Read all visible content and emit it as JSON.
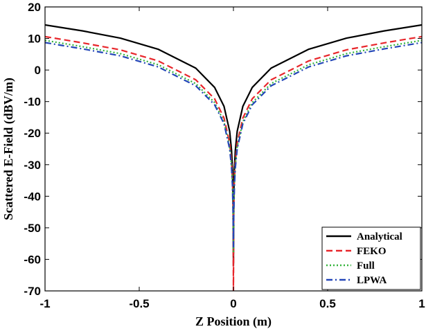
{
  "chart_data": {
    "type": "line",
    "title": "",
    "xlabel": "Z Position (m)",
    "ylabel": "Scattered E-Field (dBV/m)",
    "xlim": [
      -1,
      1
    ],
    "ylim": [
      -70,
      20
    ],
    "xticks": [
      -1,
      -0.5,
      0,
      0.5,
      1
    ],
    "xtick_labels": [
      "-1",
      "-0.5",
      "0",
      "0.5",
      "1"
    ],
    "yticks": [
      -70,
      -60,
      -50,
      -40,
      -30,
      -20,
      -10,
      0,
      10,
      20
    ],
    "ytick_labels": [
      "-70",
      "-60",
      "-50",
      "-40",
      "-30",
      "-20",
      "-10",
      "0",
      "10",
      "20"
    ],
    "grid": false,
    "legend_position": "bottom-right",
    "series": [
      {
        "name": "Analytical",
        "color": "#000000",
        "dash": "solid",
        "x": [
          -1,
          -0.8,
          -0.6,
          -0.4,
          -0.2,
          -0.1,
          -0.05,
          -0.02,
          -0.01,
          -0.005,
          -0.002,
          0,
          0.002,
          0.005,
          0.01,
          0.02,
          0.05,
          0.1,
          0.2,
          0.4,
          0.6,
          0.8,
          1
        ],
        "y": [
          14.3,
          12.4,
          10.1,
          6.6,
          0.6,
          -5.5,
          -11.5,
          -19.4,
          -25.5,
          -31.5,
          -39.4,
          -62,
          -39.4,
          -31.5,
          -25.5,
          -19.4,
          -11.5,
          -5.5,
          0.6,
          6.6,
          10.1,
          12.4,
          14.3
        ]
      },
      {
        "name": "FEKO",
        "color": "#e8262b",
        "dash": "dashed",
        "x": [
          -1,
          -0.8,
          -0.6,
          -0.4,
          -0.2,
          -0.1,
          -0.05,
          -0.02,
          -0.01,
          -0.005,
          -0.002,
          0,
          0.002,
          0.005,
          0.01,
          0.02,
          0.05,
          0.1,
          0.2,
          0.4,
          0.6,
          0.8,
          1
        ],
        "y": [
          10.6,
          8.6,
          6.4,
          2.9,
          -3.1,
          -9.1,
          -15.2,
          -23.1,
          -29.1,
          -35.1,
          -43.1,
          -70,
          -43.1,
          -35.1,
          -29.1,
          -23.1,
          -15.2,
          -9.1,
          -3.1,
          2.9,
          6.4,
          8.6,
          10.6
        ]
      },
      {
        "name": "Full",
        "color": "#33b33a",
        "dash": "dotted",
        "x": [
          -1,
          -0.8,
          -0.6,
          -0.4,
          -0.2,
          -0.1,
          -0.05,
          -0.02,
          -0.01,
          -0.005,
          -0.002,
          0,
          0.002,
          0.005,
          0.01,
          0.02,
          0.05,
          0.1,
          0.2,
          0.4,
          0.6,
          0.8,
          1
        ],
        "y": [
          9.4,
          7.4,
          5.2,
          1.7,
          -4.3,
          -10.3,
          -16.4,
          -24.3,
          -30.3,
          -36.3,
          -44.3,
          -58,
          -44.3,
          -36.3,
          -30.3,
          -24.3,
          -16.4,
          -10.3,
          -4.3,
          1.7,
          5.2,
          7.4,
          9.4
        ]
      },
      {
        "name": "LPWA",
        "color": "#2346b8",
        "dash": "dashdot",
        "x": [
          -1,
          -0.8,
          -0.6,
          -0.4,
          -0.2,
          -0.1,
          -0.05,
          -0.02,
          -0.01,
          -0.005,
          -0.002,
          0,
          0.002,
          0.005,
          0.01,
          0.02,
          0.05,
          0.1,
          0.2,
          0.4,
          0.6,
          0.8,
          1
        ],
        "y": [
          8.7,
          6.7,
          4.5,
          1.0,
          -5.0,
          -11.0,
          -17.0,
          -25.0,
          -31.0,
          -37.0,
          -45.0,
          -56,
          -45.0,
          -37.0,
          -31.0,
          -25.0,
          -17.0,
          -11.0,
          -5.0,
          1.0,
          4.5,
          6.7,
          8.7
        ]
      }
    ]
  }
}
